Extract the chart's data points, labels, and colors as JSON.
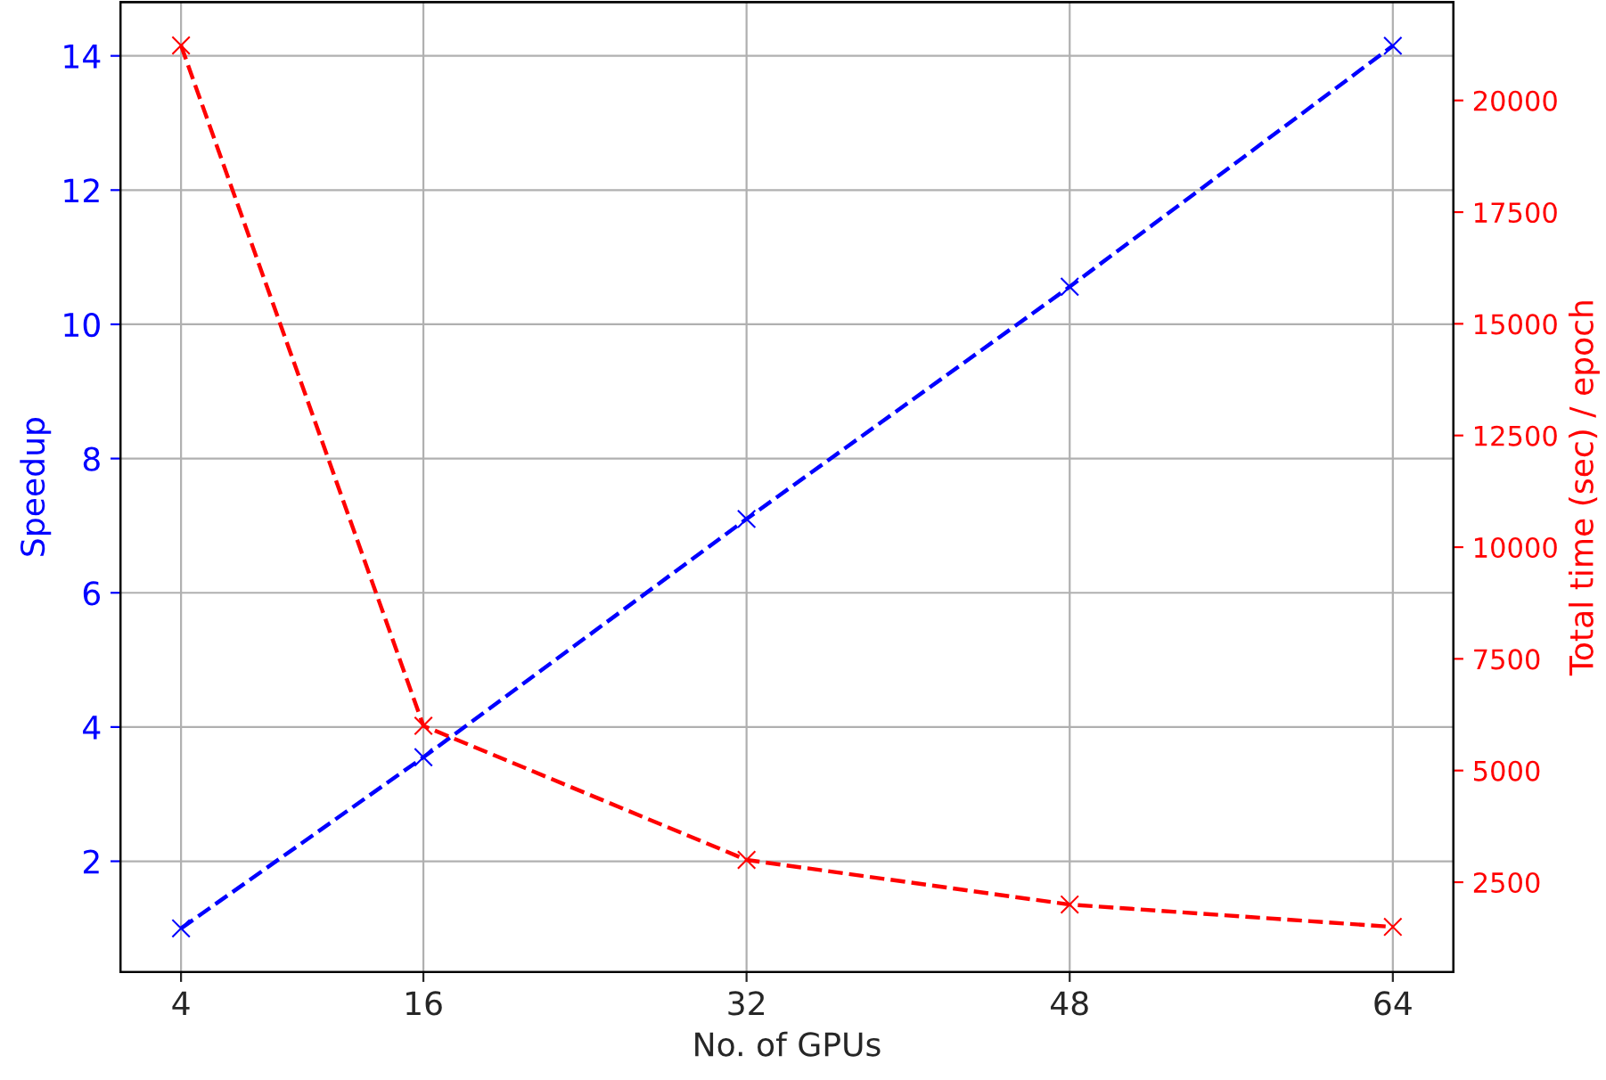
{
  "chart_data": {
    "type": "line",
    "xlabel": "No. of GPUs",
    "ylabel": "Speedup",
    "y2label": "Total time (sec) / epoch",
    "x": [
      4,
      16,
      32,
      48,
      64
    ],
    "series": [
      {
        "color": "#0000ff",
        "values": [
          1.0,
          3.55,
          7.1,
          10.56,
          14.15
        ]
      },
      {
        "color": "#ff0000",
        "axis": "y2",
        "values": [
          21230,
          6000,
          3000,
          2000,
          1500
        ]
      }
    ],
    "xlim": [
      1,
      67
    ],
    "xticks": [
      4,
      16,
      32,
      48,
      64
    ],
    "ylim": [
      0.35,
      14.8
    ],
    "yticks": [
      2,
      4,
      6,
      8,
      10,
      12,
      14
    ],
    "y2lim": [
      490,
      22200
    ],
    "y2ticks": [
      2500,
      5000,
      7500,
      10000,
      12500,
      15000,
      17500,
      20000
    ],
    "grid": true,
    "marker": "cross",
    "line_style": "dashed",
    "legend": false
  }
}
